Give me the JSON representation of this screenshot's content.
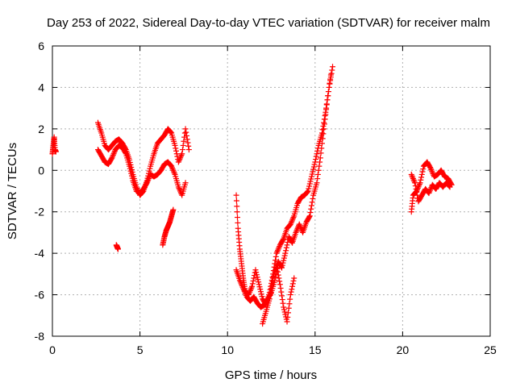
{
  "chart_data": {
    "type": "scatter",
    "title": "Day 253 of 2022, Sidereal Day-to-day VTEC variation (SDTVAR) for receiver malm",
    "xlabel": "GPS time / hours",
    "ylabel": "SDTVAR / TECUs",
    "xlim": [
      0,
      25
    ],
    "ylim": [
      -8,
      6
    ],
    "xticks": [
      0,
      5,
      10,
      15,
      20,
      25
    ],
    "yticks": [
      -8,
      -6,
      -4,
      -2,
      0,
      2,
      4,
      6
    ],
    "grid": true,
    "marker": "+",
    "color": "#ff0000",
    "segments": [
      {
        "x": [
          0.0,
          0.05,
          0.1,
          0.15,
          0.2
        ],
        "y": [
          0.8,
          1.2,
          1.6,
          1.0,
          0.9
        ]
      },
      {
        "x": [
          2.6,
          2.8,
          3.0,
          3.2,
          3.4,
          3.6,
          3.8,
          4.0,
          4.2,
          4.4,
          4.6,
          4.8,
          5.0,
          5.2,
          5.4,
          5.6,
          5.8,
          6.0,
          6.2,
          6.4,
          6.6,
          6.8,
          7.0,
          7.2,
          7.4,
          7.6,
          7.8
        ],
        "y": [
          2.3,
          1.8,
          1.2,
          1.0,
          1.2,
          1.4,
          1.5,
          1.3,
          1.0,
          0.5,
          -0.2,
          -0.8,
          -1.2,
          -1.0,
          -0.5,
          0.2,
          0.8,
          1.3,
          1.5,
          1.7,
          2.0,
          1.8,
          1.2,
          0.4,
          0.8,
          2.0,
          1.0
        ]
      },
      {
        "x": [
          2.6,
          2.8,
          3.0,
          3.2,
          3.4,
          3.6,
          3.8,
          4.0,
          4.2,
          4.4,
          4.6,
          4.8,
          5.0,
          5.2,
          5.4,
          5.6,
          5.8,
          6.0,
          6.2,
          6.4,
          6.6,
          6.8,
          7.0,
          7.2,
          7.4,
          7.6
        ],
        "y": [
          1.0,
          0.7,
          0.4,
          0.3,
          0.6,
          1.0,
          1.2,
          1.1,
          0.8,
          0.2,
          -0.5,
          -1.0,
          -1.1,
          -0.9,
          -0.6,
          -0.2,
          -0.3,
          -0.2,
          0.0,
          0.3,
          0.4,
          0.2,
          -0.2,
          -0.8,
          -1.2,
          -0.6
        ]
      },
      {
        "x": [
          3.65,
          3.7,
          3.75
        ],
        "y": [
          -3.6,
          -3.7,
          -3.8
        ]
      },
      {
        "x": [
          6.3,
          6.4,
          6.5,
          6.6,
          6.7,
          6.8,
          6.9
        ],
        "y": [
          -3.6,
          -3.2,
          -2.9,
          -2.7,
          -2.5,
          -2.2,
          -1.9
        ]
      },
      {
        "x": [
          10.5,
          10.6,
          10.7,
          10.8,
          10.9,
          11.0,
          11.2,
          11.4,
          11.6,
          11.8,
          12.0,
          12.2,
          12.4,
          12.6,
          12.8,
          13.0,
          13.2,
          13.4,
          13.6,
          13.8,
          14.0,
          14.2,
          14.4,
          14.6,
          14.8,
          15.0,
          15.2,
          15.4,
          15.6,
          15.8,
          16.0
        ],
        "y": [
          -1.2,
          -2.8,
          -3.8,
          -4.5,
          -5.2,
          -5.8,
          -6.0,
          -5.6,
          -4.8,
          -5.5,
          -6.2,
          -6.5,
          -5.9,
          -5.0,
          -4.0,
          -3.6,
          -3.3,
          -2.8,
          -2.6,
          -2.2,
          -1.6,
          -1.3,
          -1.2,
          -1.0,
          -0.3,
          0.4,
          1.2,
          1.8,
          2.8,
          4.0,
          5.0
        ]
      },
      {
        "x": [
          10.5,
          10.7,
          10.9,
          11.1,
          11.3,
          11.5,
          11.7,
          11.9,
          12.1,
          12.3,
          12.5,
          12.7,
          12.9,
          13.1,
          13.3,
          13.5,
          13.7,
          13.9,
          14.1,
          14.3,
          14.5,
          14.7,
          14.9,
          15.1,
          15.3,
          15.5,
          15.7,
          15.9
        ],
        "y": [
          -4.8,
          -5.3,
          -5.7,
          -6.1,
          -6.3,
          -6.1,
          -6.4,
          -6.6,
          -6.5,
          -6.2,
          -5.9,
          -5.3,
          -4.4,
          -4.7,
          -4.0,
          -3.2,
          -3.5,
          -3.0,
          -2.6,
          -3.0,
          -2.5,
          -2.2,
          -1.2,
          -0.6,
          0.6,
          2.0,
          3.4,
          4.6
        ]
      },
      {
        "x": [
          12.0,
          12.2,
          12.4,
          12.6,
          12.8,
          13.0,
          13.2,
          13.4,
          13.6,
          13.8
        ],
        "y": [
          -7.4,
          -6.8,
          -6.2,
          -5.2,
          -4.6,
          -5.5,
          -6.6,
          -7.3,
          -6.0,
          -5.2
        ]
      },
      {
        "x": [
          20.5,
          20.6,
          20.8,
          21.0,
          21.2,
          21.4,
          21.6,
          21.8,
          22.0,
          22.2,
          22.4,
          22.6,
          22.8
        ],
        "y": [
          -2.0,
          -1.2,
          -1.0,
          -0.6,
          0.2,
          0.4,
          0.1,
          -0.3,
          -0.2,
          0.0,
          -0.3,
          -0.4,
          -0.7
        ]
      },
      {
        "x": [
          20.5,
          20.7,
          20.9,
          21.1,
          21.3,
          21.5,
          21.7,
          21.9,
          22.1,
          22.3,
          22.5,
          22.7
        ],
        "y": [
          -0.2,
          -0.6,
          -1.5,
          -1.2,
          -0.9,
          -1.1,
          -0.7,
          -0.9,
          -0.6,
          -0.8,
          -0.6,
          -0.8
        ]
      }
    ]
  }
}
